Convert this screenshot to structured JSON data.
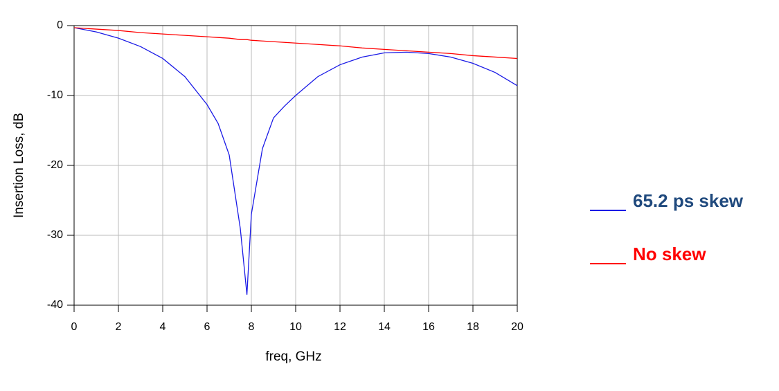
{
  "chart_data": {
    "type": "line",
    "x_label": "freq, GHz",
    "y_label": "Insertion Loss, dB",
    "x": [
      0,
      1,
      2,
      3,
      4,
      5,
      6,
      6.5,
      7,
      7.5,
      7.8,
      8,
      8.5,
      9,
      9.5,
      10,
      11,
      12,
      13,
      14,
      15,
      16,
      17,
      18,
      19,
      20
    ],
    "series": [
      {
        "name": "65.2 ps skew",
        "color": "#1a1ae6",
        "values": [
          -0.3,
          -0.9,
          -1.8,
          -3.0,
          -4.7,
          -7.3,
          -11.3,
          -14.0,
          -18.5,
          -29.0,
          -38.5,
          -27.0,
          -17.6,
          -13.2,
          -11.5,
          -10.0,
          -7.3,
          -5.6,
          -4.5,
          -3.9,
          -3.8,
          -4.0,
          -4.5,
          -5.4,
          -6.7,
          -8.6
        ]
      },
      {
        "name": "No skew",
        "color": "#ff0000",
        "values": [
          -0.3,
          -0.5,
          -0.7,
          -1.0,
          -1.2,
          -1.4,
          -1.6,
          -1.7,
          -1.8,
          -2.0,
          -2.0,
          -2.1,
          -2.2,
          -2.3,
          -2.4,
          -2.5,
          -2.7,
          -2.9,
          -3.2,
          -3.4,
          -3.6,
          -3.8,
          -4.0,
          -4.3,
          -4.5,
          -4.7
        ]
      }
    ],
    "xlim": [
      0,
      20
    ],
    "xticks": [
      0,
      2,
      4,
      6,
      8,
      10,
      12,
      14,
      16,
      18,
      20
    ],
    "ylim": [
      -40,
      0
    ],
    "yticks": [
      -40,
      -30,
      -20,
      -10,
      0
    ],
    "grid": true,
    "legend": "right"
  }
}
